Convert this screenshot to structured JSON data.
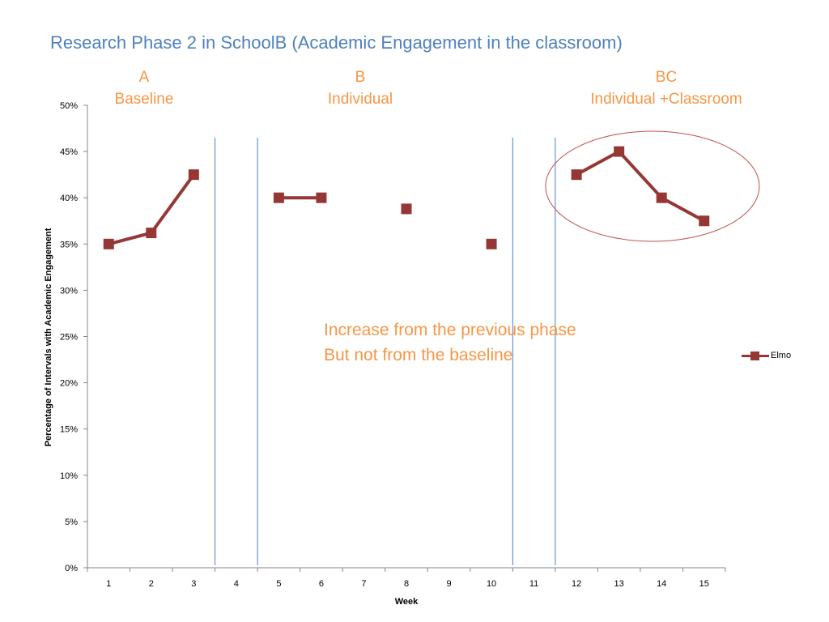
{
  "slide": {
    "title": "Research Phase 2 in SchoolB (Academic Engagement in the classroom)"
  },
  "phases": [
    {
      "code": "A",
      "name": "Baseline"
    },
    {
      "code": "B",
      "name": "Individual"
    },
    {
      "code": "BC",
      "name": "Individual +Classroom"
    }
  ],
  "annotation": {
    "line1": "Increase from the previous phase",
    "line2": "But not from the baseline"
  },
  "colors": {
    "series": "#953735",
    "phase_line": "#4f81bd",
    "phase_label": "#f79646",
    "title": "#4f81bd",
    "highlight_ellipse": "#c0504d"
  },
  "chart_data": {
    "type": "line",
    "title": "",
    "xlabel": "Week",
    "ylabel": "Percentage of Intervals with Academic Engagement",
    "categories": [
      "1",
      "2",
      "3",
      "4",
      "5",
      "6",
      "7",
      "8",
      "9",
      "10",
      "11",
      "12",
      "13",
      "14",
      "15"
    ],
    "yticks": [
      "0%",
      "5%",
      "10%",
      "15%",
      "20%",
      "25%",
      "30%",
      "35%",
      "40%",
      "45%",
      "50%"
    ],
    "ylim": [
      0,
      50
    ],
    "series": [
      {
        "name": "Elmo",
        "values": [
          35,
          36.2,
          42.5,
          null,
          40,
          40,
          null,
          38.8,
          null,
          35,
          null,
          42.5,
          45,
          40,
          37.5
        ]
      }
    ],
    "phase_change_after_weeks": [
      3,
      4,
      10,
      11
    ],
    "highlighted_weeks": [
      12,
      13,
      14,
      15
    ],
    "legend_position": "right",
    "grid": false
  }
}
